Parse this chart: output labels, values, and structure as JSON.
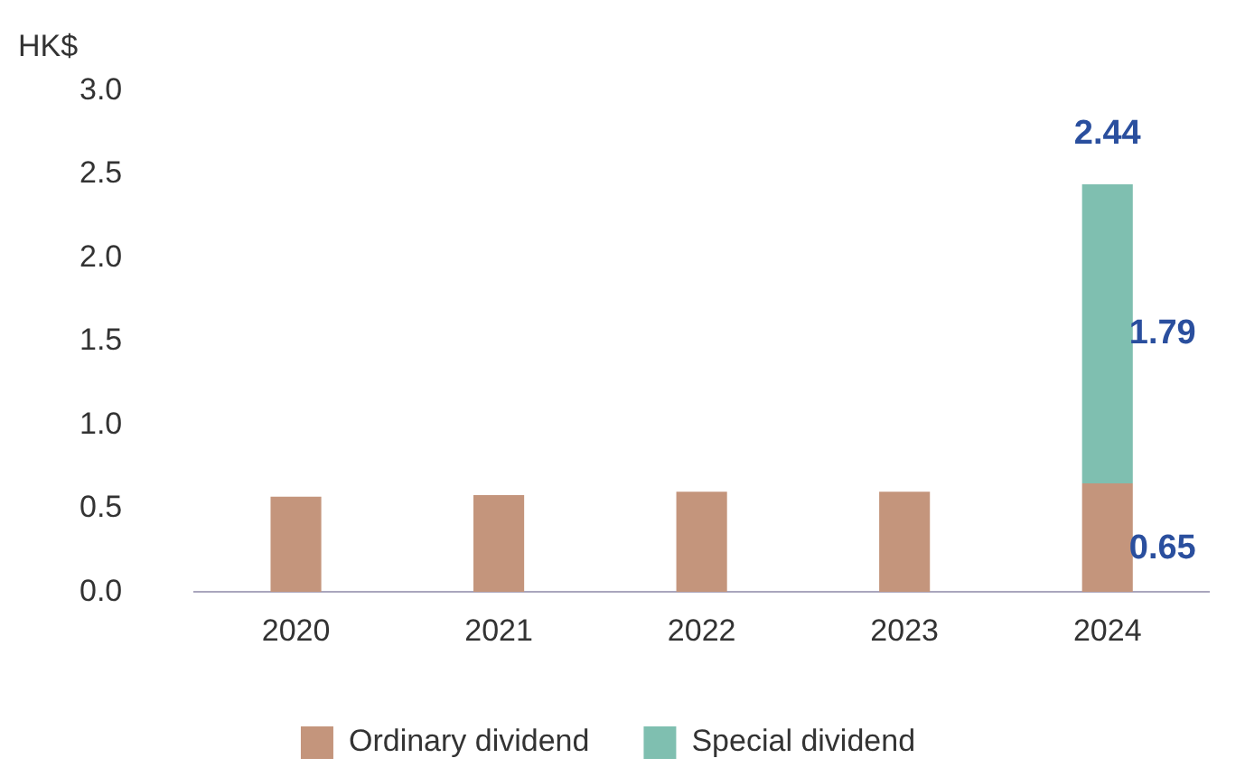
{
  "chart_data": {
    "type": "bar",
    "stacked": true,
    "ylabel": "HK$",
    "categories": [
      "2020",
      "2021",
      "2022",
      "2023",
      "2024"
    ],
    "series": [
      {
        "name": "Ordinary dividend",
        "color": "#c4957c",
        "values": [
          0.57,
          0.58,
          0.6,
          0.6,
          0.65
        ],
        "value_labels": [
          null,
          null,
          null,
          null,
          "0.65"
        ]
      },
      {
        "name": "Special dividend",
        "color": "#7fbfb0",
        "values": [
          null,
          null,
          null,
          null,
          1.79
        ],
        "value_labels": [
          null,
          null,
          null,
          null,
          "1.79"
        ]
      }
    ],
    "totals": [
      null,
      null,
      null,
      null,
      "2.44"
    ],
    "ylim": [
      0,
      3
    ],
    "yticks": [
      {
        "value": 0,
        "label": "0.0"
      },
      {
        "value": 0.5,
        "label": "0.5"
      },
      {
        "value": 1,
        "label": "1.0"
      },
      {
        "value": 1.5,
        "label": "1.5"
      },
      {
        "value": 2,
        "label": "2.0"
      },
      {
        "value": 2.5,
        "label": "2.5"
      },
      {
        "value": 3,
        "label": "3.0"
      }
    ],
    "grid": false,
    "legend": "bottom"
  }
}
